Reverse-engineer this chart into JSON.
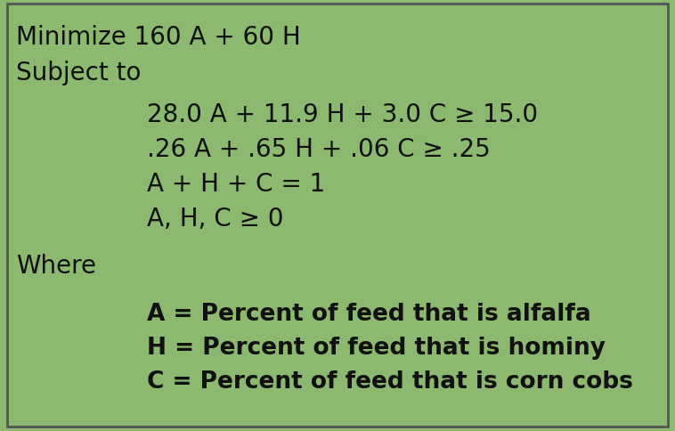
{
  "background_color": "#8db870",
  "border_color": "#555555",
  "text_color": "#111111",
  "font_size": 20,
  "font_size_defs": 19,
  "title_line": "Minimize 160 A + 60 H",
  "subject_line": "Subject to",
  "constraints": [
    "28.0 A + 11.9 H + 3.0 C ≥ 15.0",
    ".26 A + .65 H + .06 C ≥ .25",
    "A + H + C = 1",
    "A, H, C ≥ 0"
  ],
  "where_line": "Where",
  "definitions": [
    "A = Percent of feed that is alfalfa",
    "H = Percent of feed that is hominy",
    "C = Percent of feed that is corn cobs"
  ],
  "figsize": [
    7.58,
    4.85
  ],
  "dpi": 100
}
